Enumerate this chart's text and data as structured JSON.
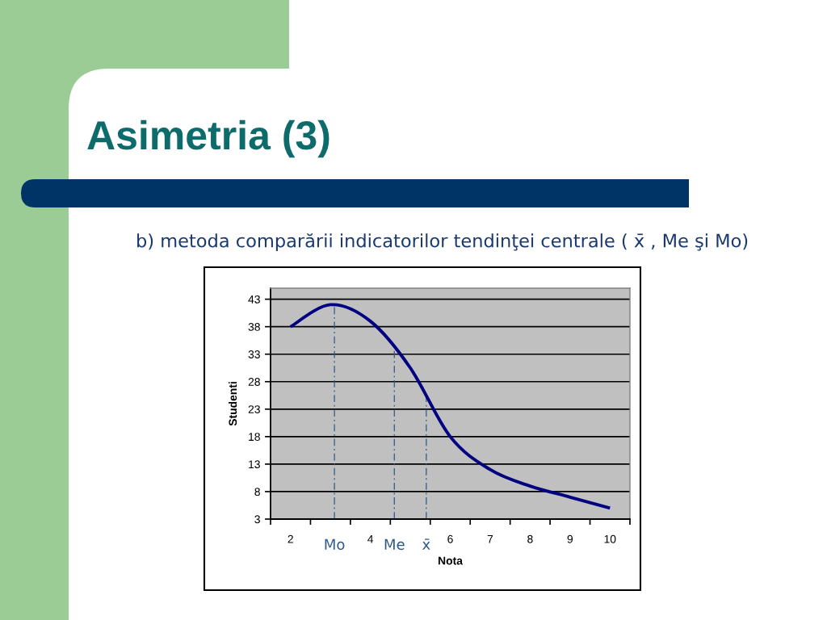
{
  "chart_data": {
    "type": "line",
    "title": "Asimetria (3)",
    "subtitle": "b) metoda comparării indicatorilor tendinţei centrale ( x̄ , Me şi Mo)",
    "xlabel": "Nota",
    "ylabel": "Studenti",
    "x": [
      2,
      3,
      4,
      5,
      6,
      7,
      8,
      9,
      10
    ],
    "series": [
      {
        "color": "#000080",
        "values": [
          38,
          42,
          39,
          30.5,
          18,
          12,
          9,
          7,
          5
        ]
      }
    ],
    "xlim": [
      1.5,
      10.5
    ],
    "ylim": [
      3,
      45
    ],
    "xticks": [
      {
        "value": 1.5,
        "label": null
      },
      2,
      {
        "value": 2.5,
        "label": null
      },
      {
        "value": 3.5,
        "label": null
      },
      4,
      {
        "value": 4.5,
        "label": null
      },
      {
        "value": 5.5,
        "label": null
      },
      6,
      {
        "value": 6.5,
        "label": null
      },
      7,
      {
        "value": 7.5,
        "label": null
      },
      8,
      {
        "value": 8.5,
        "label": null
      },
      9,
      {
        "value": 9.5,
        "label": null
      },
      10,
      {
        "value": 10.5,
        "label": null
      }
    ],
    "yticks": [
      3,
      8,
      13,
      18,
      23,
      28,
      33,
      38,
      43
    ],
    "grid": "y",
    "ref_lines": [
      {
        "axis": "x",
        "value": 3.1,
        "label": "Mo",
        "color": "#2f5a88",
        "line_style": "dashed"
      },
      {
        "axis": "x",
        "value": 4.6,
        "label": "Me",
        "color": "#2f5a88",
        "line_style": "dashed"
      },
      {
        "axis": "x",
        "value": 5.4,
        "label": "x̄",
        "color": "#2f5a88",
        "line_style": "dashed"
      }
    ]
  }
}
